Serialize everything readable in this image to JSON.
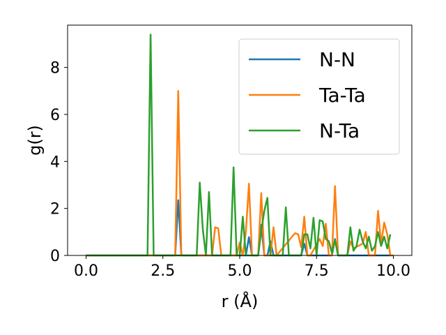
{
  "chart_data": {
    "type": "line",
    "title": "",
    "xlabel": "r (Å)",
    "ylabel": "g(r)",
    "xlim": [
      -0.6,
      10.6
    ],
    "ylim": [
      0,
      9.8
    ],
    "xticks": [
      0.0,
      2.5,
      5.0,
      7.5,
      10.0
    ],
    "xtick_labels": [
      "0.0",
      "2.5",
      "5.0",
      "7.5",
      "10.0"
    ],
    "yticks": [
      0,
      2,
      4,
      6,
      8
    ],
    "ytick_labels": [
      "0",
      "2",
      "4",
      "6",
      "8"
    ],
    "grid": false,
    "legend": "top-right",
    "series": [
      {
        "name": "N-N",
        "color": "#1f77b4",
        "x": [
          0.0,
          2.9,
          3.0,
          3.1,
          5.2,
          5.3,
          5.4,
          5.6,
          5.7,
          5.8,
          5.9,
          6.0,
          6.1,
          6.2,
          7.0,
          7.1,
          7.2,
          7.3,
          8.0,
          8.1,
          8.2,
          9.8,
          9.9
        ],
        "y": [
          0,
          0,
          2.35,
          0,
          0,
          0.78,
          0,
          0,
          1.3,
          0,
          0,
          0.6,
          0,
          0,
          0,
          0.5,
          0,
          0,
          0,
          0.7,
          0,
          0,
          0
        ]
      },
      {
        "name": "Ta-Ta",
        "color": "#ff7f0e",
        "x": [
          0.0,
          2.9,
          3.0,
          3.1,
          4.1,
          4.2,
          4.3,
          4.4,
          4.9,
          5.0,
          5.1,
          5.2,
          5.3,
          5.4,
          5.6,
          5.7,
          5.8,
          6.0,
          6.1,
          6.2,
          6.8,
          6.9,
          7.0,
          7.1,
          7.2,
          7.3,
          7.6,
          7.7,
          7.8,
          7.9,
          8.0,
          8.1,
          8.2,
          8.5,
          8.6,
          8.7,
          9.0,
          9.1,
          9.2,
          9.4,
          9.5,
          9.6,
          9.7,
          9.8,
          9.9,
          10.0
        ],
        "y": [
          0,
          0,
          7.0,
          0,
          0,
          1.2,
          1.15,
          0,
          0,
          0.55,
          0,
          1.0,
          3.05,
          0,
          0,
          2.65,
          0,
          0,
          1.2,
          0,
          0.95,
          0.9,
          0.35,
          1.65,
          0,
          0,
          0.7,
          0.4,
          1.35,
          0,
          0,
          2.95,
          0,
          0,
          0.6,
          0.3,
          0.5,
          1.0,
          0,
          0,
          1.9,
          0.5,
          1.4,
          0.9,
          0,
          0
        ]
      },
      {
        "name": "N-Ta",
        "color": "#2ca02c",
        "x": [
          0.0,
          2.0,
          2.1,
          2.2,
          3.6,
          3.7,
          3.8,
          3.9,
          4.0,
          4.1,
          4.7,
          4.8,
          4.9,
          5.0,
          5.1,
          5.2,
          5.6,
          5.7,
          5.8,
          5.9,
          6.0,
          6.4,
          6.5,
          6.6,
          7.0,
          7.1,
          7.2,
          7.3,
          7.4,
          7.5,
          7.6,
          7.7,
          7.8,
          7.9,
          8.0,
          8.1,
          8.2,
          8.5,
          8.6,
          8.7,
          8.8,
          8.9,
          9.0,
          9.1,
          9.2,
          9.3,
          9.4,
          9.5,
          9.6,
          9.7,
          9.8,
          9.9
        ],
        "y": [
          0,
          0,
          9.4,
          0,
          0,
          3.1,
          1.1,
          0,
          2.7,
          0,
          0,
          3.75,
          0,
          0,
          1.65,
          0,
          0,
          1.05,
          1.9,
          2.45,
          0,
          0,
          2.05,
          0,
          0,
          0.9,
          0.9,
          0.3,
          1.6,
          0,
          1.5,
          1.45,
          0.7,
          0.6,
          0.1,
          0.65,
          0,
          0,
          1.2,
          0.2,
          0.4,
          1.1,
          0.6,
          0.3,
          0.8,
          0.2,
          0.4,
          1.0,
          0.4,
          0.8,
          0.3,
          0.9
        ]
      }
    ]
  }
}
